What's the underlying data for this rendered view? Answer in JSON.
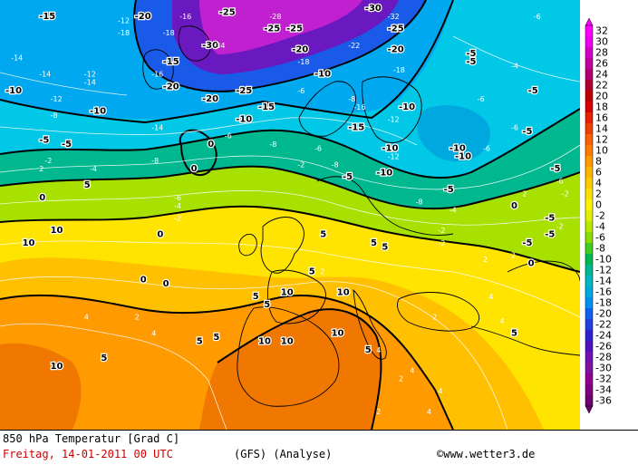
{
  "map": {
    "contour_labels": [
      {
        "text": "-16",
        "lon": -0.1,
        "lat": 0.0
      },
      {
        "text": "-15",
        "lon": 0.06,
        "lat": 0.02
      },
      {
        "text": "-12",
        "lon": 0.2,
        "lat": 0.03
      },
      {
        "text": "-20",
        "lon": 0.23,
        "lat": 0.02
      },
      {
        "text": "-16",
        "lon": 0.31,
        "lat": 0.02
      },
      {
        "text": "-25",
        "lon": 0.38,
        "lat": 0.01
      },
      {
        "text": "-28",
        "lon": 0.47,
        "lat": 0.02
      },
      {
        "text": "-30",
        "lon": 0.64,
        "lat": 0.0
      },
      {
        "text": "-32",
        "lon": 0.68,
        "lat": 0.02
      },
      {
        "text": "-6",
        "lon": 0.94,
        "lat": 0.02
      },
      {
        "text": "-18",
        "lon": 0.2,
        "lat": 0.06
      },
      {
        "text": "-18",
        "lon": 0.28,
        "lat": 0.06
      },
      {
        "text": "-25",
        "lon": 0.46,
        "lat": 0.05
      },
      {
        "text": "-25",
        "lon": 0.5,
        "lat": 0.05
      },
      {
        "text": "-25",
        "lon": 0.68,
        "lat": 0.05
      },
      {
        "text": "-30",
        "lon": 0.35,
        "lat": 0.09
      },
      {
        "text": "-34",
        "lon": 0.37,
        "lat": 0.09
      },
      {
        "text": "-20",
        "lon": 0.51,
        "lat": 0.1
      },
      {
        "text": "-22",
        "lon": 0.61,
        "lat": 0.09
      },
      {
        "text": "-20",
        "lon": 0.68,
        "lat": 0.1
      },
      {
        "text": "-14",
        "lon": 0.01,
        "lat": 0.12
      },
      {
        "text": "-15",
        "lon": 0.28,
        "lat": 0.13
      },
      {
        "text": "-18",
        "lon": 0.52,
        "lat": 0.13
      },
      {
        "text": "-5",
        "lon": 0.82,
        "lat": 0.11
      },
      {
        "text": "-5",
        "lon": 0.82,
        "lat": 0.13
      },
      {
        "text": "-4",
        "lon": 0.9,
        "lat": 0.14
      },
      {
        "text": "-14",
        "lon": 0.06,
        "lat": 0.16
      },
      {
        "text": "-12",
        "lon": 0.14,
        "lat": 0.16
      },
      {
        "text": "-16",
        "lon": 0.26,
        "lat": 0.16
      },
      {
        "text": "-10",
        "lon": 0.55,
        "lat": 0.16
      },
      {
        "text": "-18",
        "lon": 0.69,
        "lat": 0.15
      },
      {
        "text": "-10",
        "lon": 0.0,
        "lat": 0.2
      },
      {
        "text": "-14",
        "lon": 0.14,
        "lat": 0.18
      },
      {
        "text": "-20",
        "lon": 0.28,
        "lat": 0.19
      },
      {
        "text": "-25",
        "lon": 0.41,
        "lat": 0.2
      },
      {
        "text": "-6",
        "lon": 0.52,
        "lat": 0.2
      },
      {
        "text": "-5",
        "lon": 0.93,
        "lat": 0.2
      },
      {
        "text": "-12",
        "lon": 0.08,
        "lat": 0.22
      },
      {
        "text": "-20",
        "lon": 0.35,
        "lat": 0.22
      },
      {
        "text": "-8",
        "lon": 0.61,
        "lat": 0.22
      },
      {
        "text": "-6",
        "lon": 0.84,
        "lat": 0.22
      },
      {
        "text": "-10",
        "lon": 0.15,
        "lat": 0.25
      },
      {
        "text": "-15",
        "lon": 0.45,
        "lat": 0.24
      },
      {
        "text": "-16",
        "lon": 0.62,
        "lat": 0.24
      },
      {
        "text": "-10",
        "lon": 0.7,
        "lat": 0.24
      },
      {
        "text": "-8",
        "lon": 0.08,
        "lat": 0.26
      },
      {
        "text": "-10",
        "lon": 0.41,
        "lat": 0.27
      },
      {
        "text": "-12",
        "lon": 0.68,
        "lat": 0.27
      },
      {
        "text": "-14",
        "lon": 0.26,
        "lat": 0.29
      },
      {
        "text": "-15",
        "lon": 0.61,
        "lat": 0.29
      },
      {
        "text": "-6",
        "lon": 0.39,
        "lat": 0.31
      },
      {
        "text": "-5",
        "lon": 0.92,
        "lat": 0.3
      },
      {
        "text": "-6",
        "lon": 0.9,
        "lat": 0.29
      },
      {
        "text": "-5",
        "lon": 0.06,
        "lat": 0.32
      },
      {
        "text": "-5",
        "lon": 0.1,
        "lat": 0.33
      },
      {
        "text": "0",
        "lon": 0.36,
        "lat": 0.33
      },
      {
        "text": "-8",
        "lon": 0.47,
        "lat": 0.33
      },
      {
        "text": "-6",
        "lon": 0.55,
        "lat": 0.34
      },
      {
        "text": "-10",
        "lon": 0.67,
        "lat": 0.34
      },
      {
        "text": "-10",
        "lon": 0.79,
        "lat": 0.34
      },
      {
        "text": "-6",
        "lon": 0.85,
        "lat": 0.34
      },
      {
        "text": "-2",
        "lon": 0.07,
        "lat": 0.37
      },
      {
        "text": "-8",
        "lon": 0.26,
        "lat": 0.37
      },
      {
        "text": "-12",
        "lon": 0.68,
        "lat": 0.36
      },
      {
        "text": "-10",
        "lon": 0.8,
        "lat": 0.36
      },
      {
        "text": "2",
        "lon": 0.06,
        "lat": 0.39
      },
      {
        "text": "-4",
        "lon": 0.15,
        "lat": 0.39
      },
      {
        "text": "0",
        "lon": 0.33,
        "lat": 0.39
      },
      {
        "text": "-2",
        "lon": 0.52,
        "lat": 0.38
      },
      {
        "text": "-8",
        "lon": 0.58,
        "lat": 0.38
      },
      {
        "text": "-5",
        "lon": 0.97,
        "lat": 0.39
      },
      {
        "text": "5",
        "lon": 0.14,
        "lat": 0.43
      },
      {
        "text": "-5",
        "lon": 0.6,
        "lat": 0.41
      },
      {
        "text": "-10",
        "lon": 0.66,
        "lat": 0.4
      },
      {
        "text": "-6",
        "lon": 0.98,
        "lat": 0.42
      },
      {
        "text": "0",
        "lon": 0.06,
        "lat": 0.46
      },
      {
        "text": "-6",
        "lon": 0.3,
        "lat": 0.46
      },
      {
        "text": "-5",
        "lon": 0.78,
        "lat": 0.44
      },
      {
        "text": "2",
        "lon": 0.92,
        "lat": 0.45
      },
      {
        "text": "-2",
        "lon": 0.99,
        "lat": 0.45
      },
      {
        "text": "-4",
        "lon": 0.3,
        "lat": 0.48
      },
      {
        "text": "-8",
        "lon": 0.73,
        "lat": 0.47
      },
      {
        "text": "0",
        "lon": 0.9,
        "lat": 0.48
      },
      {
        "text": "-2",
        "lon": 0.3,
        "lat": 0.51
      },
      {
        "text": "-4",
        "lon": 0.79,
        "lat": 0.49
      },
      {
        "text": "-5",
        "lon": 0.96,
        "lat": 0.51
      },
      {
        "text": "-2",
        "lon": 0.98,
        "lat": 0.53
      },
      {
        "text": "10",
        "lon": 0.08,
        "lat": 0.54
      },
      {
        "text": "0",
        "lon": 0.27,
        "lat": 0.55
      },
      {
        "text": "5",
        "lon": 0.56,
        "lat": 0.55
      },
      {
        "text": "-2",
        "lon": 0.77,
        "lat": 0.54
      },
      {
        "text": "-5",
        "lon": 0.96,
        "lat": 0.55
      },
      {
        "text": "10",
        "lon": 0.03,
        "lat": 0.57
      },
      {
        "text": "5",
        "lon": 0.65,
        "lat": 0.57
      },
      {
        "text": "5",
        "lon": 0.67,
        "lat": 0.58
      },
      {
        "text": "-2",
        "lon": 0.77,
        "lat": 0.57
      },
      {
        "text": "-5",
        "lon": 0.92,
        "lat": 0.57
      },
      {
        "text": "2",
        "lon": 0.9,
        "lat": 0.6
      },
      {
        "text": "2",
        "lon": 0.85,
        "lat": 0.61
      },
      {
        "text": "5",
        "lon": 0.54,
        "lat": 0.64
      },
      {
        "text": "2",
        "lon": 0.56,
        "lat": 0.64
      },
      {
        "text": "0",
        "lon": 0.93,
        "lat": 0.62
      },
      {
        "text": "0",
        "lon": 0.24,
        "lat": 0.66
      },
      {
        "text": "0",
        "lon": 0.28,
        "lat": 0.67
      },
      {
        "text": "10",
        "lon": 0.59,
        "lat": 0.69
      },
      {
        "text": "5",
        "lon": 0.44,
        "lat": 0.7
      },
      {
        "text": "10",
        "lon": 0.49,
        "lat": 0.69
      },
      {
        "text": "4",
        "lon": 0.86,
        "lat": 0.7
      },
      {
        "text": "5",
        "lon": 0.46,
        "lat": 0.72
      },
      {
        "text": "4",
        "lon": 0.14,
        "lat": 0.75
      },
      {
        "text": "2",
        "lon": 0.23,
        "lat": 0.75
      },
      {
        "text": "4",
        "lon": 0.88,
        "lat": 0.76
      },
      {
        "text": "2",
        "lon": 0.76,
        "lat": 0.75
      },
      {
        "text": "4",
        "lon": 0.26,
        "lat": 0.79
      },
      {
        "text": "10",
        "lon": 0.58,
        "lat": 0.79
      },
      {
        "text": "5",
        "lon": 0.9,
        "lat": 0.79
      },
      {
        "text": "5",
        "lon": 0.34,
        "lat": 0.81
      },
      {
        "text": "5",
        "lon": 0.37,
        "lat": 0.8
      },
      {
        "text": "10",
        "lon": 0.45,
        "lat": 0.81
      },
      {
        "text": "10",
        "lon": 0.49,
        "lat": 0.81
      },
      {
        "text": "5",
        "lon": 0.17,
        "lat": 0.85
      },
      {
        "text": "5",
        "lon": 0.64,
        "lat": 0.83
      },
      {
        "text": "4",
        "lon": 0.66,
        "lat": 0.83
      },
      {
        "text": "10",
        "lon": 0.08,
        "lat": 0.87
      },
      {
        "text": "4",
        "lon": 0.72,
        "lat": 0.88
      },
      {
        "text": "2",
        "lon": 0.7,
        "lat": 0.9
      },
      {
        "text": "4",
        "lon": 0.77,
        "lat": 0.93
      },
      {
        "text": "2",
        "lon": 0.66,
        "lat": 0.98
      },
      {
        "text": "4",
        "lon": 0.75,
        "lat": 0.98
      }
    ]
  },
  "legend": {
    "labels": [
      "32",
      "30",
      "28",
      "26",
      "24",
      "22",
      "20",
      "18",
      "16",
      "14",
      "12",
      "10",
      "8",
      "6",
      "4",
      "2",
      "0",
      "-2",
      "-4",
      "-6",
      "-8",
      "-10",
      "-12",
      "-14",
      "-16",
      "-18",
      "-20",
      "-22",
      "-24",
      "-26",
      "-28",
      "-30",
      "-32",
      "-34",
      "-36"
    ],
    "colors": [
      "#ff00ff",
      "#ee00ee",
      "#d400c8",
      "#c000a0",
      "#b00070",
      "#b00030",
      "#c00000",
      "#d80000",
      "#e82000",
      "#f04000",
      "#f86000",
      "#ff7a00",
      "#ff9a00",
      "#ffb400",
      "#ffcc00",
      "#ffe000",
      "#fff200",
      "#e0f000",
      "#b8e800",
      "#88dc00",
      "#40cc20",
      "#00b850",
      "#00b890",
      "#00b8c0",
      "#00a8e0",
      "#0090f0",
      "#1060f0",
      "#2040e0",
      "#3020d0",
      "#5010c0",
      "#7010b0",
      "#8010a0",
      "#900090",
      "#800080",
      "#700070"
    ]
  },
  "footer": {
    "title": "850 hPa Temperatur [Grad C]",
    "date": "Freitag, 14-01-2011  00 UTC",
    "model": "(GFS)  (Analyse)",
    "copyright": "©www.wetter3.de"
  }
}
